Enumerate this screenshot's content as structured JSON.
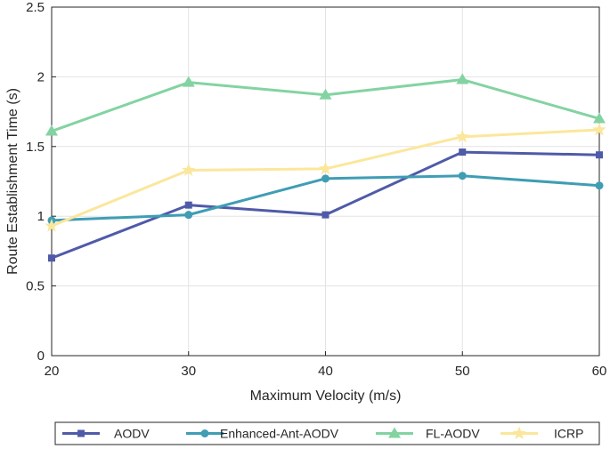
{
  "chart_data": {
    "type": "line",
    "title": "",
    "xlabel": "Maximum Velocity (m/s)",
    "ylabel": "Route Establishment Time (s)",
    "x": [
      20,
      30,
      40,
      50,
      60
    ],
    "xlim": [
      20,
      60
    ],
    "ylim": [
      0,
      2.5
    ],
    "xticks": [
      "20",
      "30",
      "40",
      "50",
      "60"
    ],
    "yticks": [
      "0",
      "0.5",
      "1",
      "1.5",
      "2",
      "2.5"
    ],
    "grid": true,
    "legend_position": "bottom",
    "series": [
      {
        "name": "AODV",
        "color": "#4f5aa8",
        "marker": "square",
        "values": [
          0.7,
          1.08,
          1.01,
          1.46,
          1.44
        ]
      },
      {
        "name": "Enhanced-Ant-AODV",
        "color": "#3f9db4",
        "marker": "circle",
        "values": [
          0.97,
          1.01,
          1.27,
          1.29,
          1.22
        ]
      },
      {
        "name": "FL-AODV",
        "color": "#83d3a2",
        "marker": "triangle",
        "values": [
          1.61,
          1.96,
          1.87,
          1.98,
          1.7
        ]
      },
      {
        "name": "ICRP",
        "color": "#fbe79c",
        "marker": "star",
        "values": [
          0.93,
          1.33,
          1.34,
          1.57,
          1.62
        ]
      }
    ]
  }
}
